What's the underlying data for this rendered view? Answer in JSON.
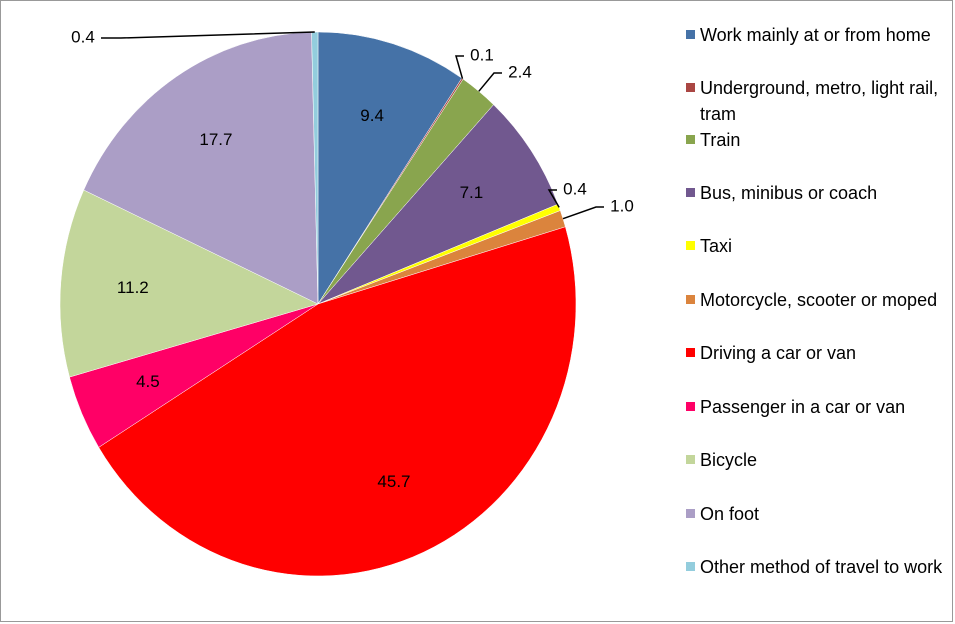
{
  "chart_data": {
    "type": "pie",
    "categories": [
      "Work mainly at or from home",
      "Underground, metro, light rail, tram",
      "Train",
      "Bus, minibus or coach",
      "Taxi",
      "Motorcycle, scooter or moped",
      "Driving a car or van",
      "Passenger in a car or van",
      "Bicycle",
      "On foot",
      "Other method of travel to work"
    ],
    "values": [
      9.4,
      0.1,
      2.4,
      7.1,
      0.4,
      1.0,
      45.7,
      4.5,
      11.2,
      17.7,
      0.4
    ],
    "value_labels": [
      "9.4",
      "0.1",
      "2.4",
      "7.1",
      "0.4",
      "1.0",
      "45.7",
      "4.5",
      "11.2",
      "17.7",
      "0.4"
    ],
    "colors": [
      "#4572a7",
      "#aa4643",
      "#89a54e",
      "#71588f",
      "#ffff00",
      "#db843d",
      "#ff0000",
      "#ff0066",
      "#c3d69b",
      "#ab9ec6",
      "#93cddd"
    ],
    "legend": "right"
  }
}
